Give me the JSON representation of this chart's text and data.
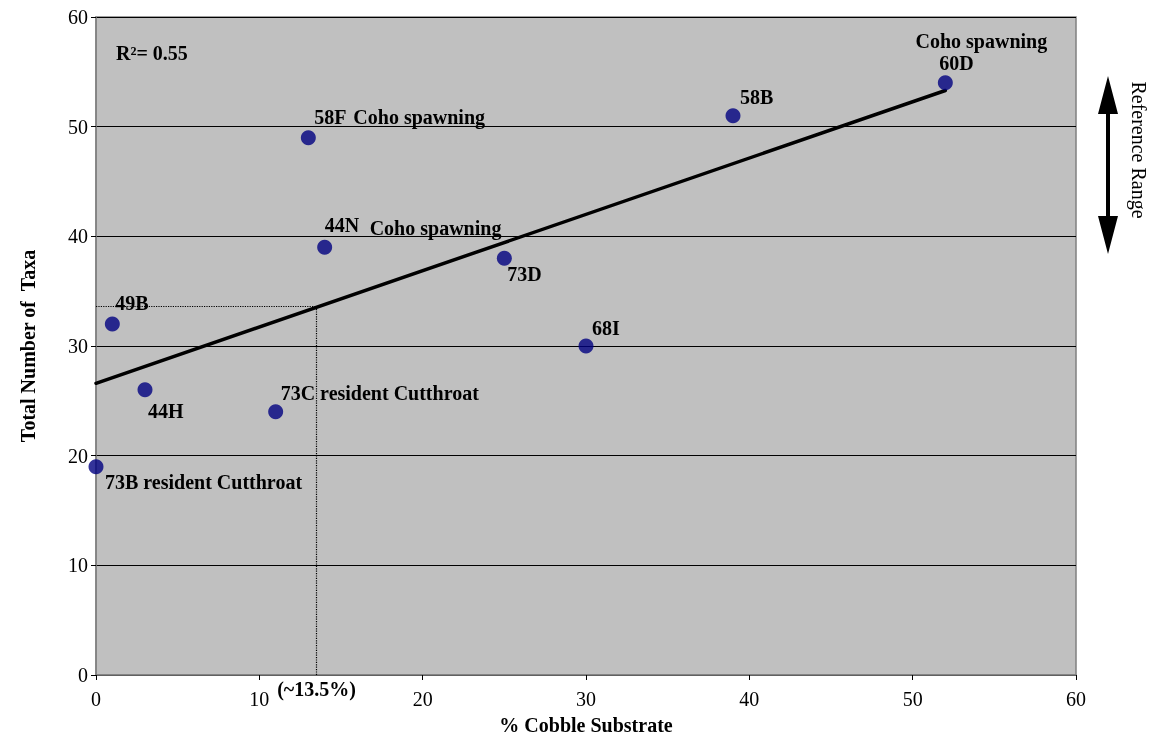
{
  "chart_data": {
    "type": "scatter",
    "xlabel": "% Cobble Substrate",
    "ylabel": "Total Number of  Taxa",
    "xlim": [
      0,
      60
    ],
    "xticks": [
      0,
      10,
      20,
      30,
      40,
      50,
      60
    ],
    "ylim": [
      0,
      60
    ],
    "yticks": [
      0,
      10,
      20,
      30,
      40,
      50,
      60
    ],
    "grid": "y",
    "series": [
      {
        "color": "#000080",
        "marker": "circle",
        "x": [
          0,
          1,
          3,
          11,
          13,
          14,
          25,
          30,
          39,
          52
        ],
        "values": [
          19,
          32,
          26,
          24,
          49,
          39,
          38,
          30,
          51,
          54
        ]
      },
      {
        "type": "line",
        "color": "#000000",
        "marker": "none",
        "line_style": "solid",
        "x": [
          0,
          52
        ],
        "values": [
          26.6,
          53.3
        ]
      }
    ],
    "ref_lines": [
      {
        "axis": "x",
        "value": 13.5,
        "label": "(~13.5%)",
        "line_style": "dotted",
        "color": "#000000"
      },
      {
        "axis": "y",
        "value": 33.6,
        "line_style": "dotted",
        "color": "#000000"
      }
    ],
    "annotations": [
      "R²= 0.55",
      {
        "text": "60D",
        "x": 52,
        "y": 54
      },
      {
        "text": "Coho spawning",
        "x": 52,
        "y": 54
      },
      {
        "text": "58B",
        "x": 39,
        "y": 51
      },
      {
        "text": "58F",
        "x": 13,
        "y": 49
      },
      {
        "text": "Coho spawning",
        "x": 13,
        "y": 49
      },
      {
        "text": "44N",
        "x": 14,
        "y": 39
      },
      {
        "text": "Coho spawning",
        "x": 14,
        "y": 39
      },
      {
        "text": "73D",
        "x": 25,
        "y": 38
      },
      {
        "text": "49B",
        "x": 1,
        "y": 32
      },
      {
        "text": "68I",
        "x": 30,
        "y": 30
      },
      {
        "text": "44H",
        "x": 3,
        "y": 26
      },
      {
        "text": "73C resident Cutthroat",
        "x": 11,
        "y": 24
      },
      {
        "text": "73B resident Cutthroat",
        "x": 0,
        "y": 19
      },
      "Reference Range"
    ]
  }
}
